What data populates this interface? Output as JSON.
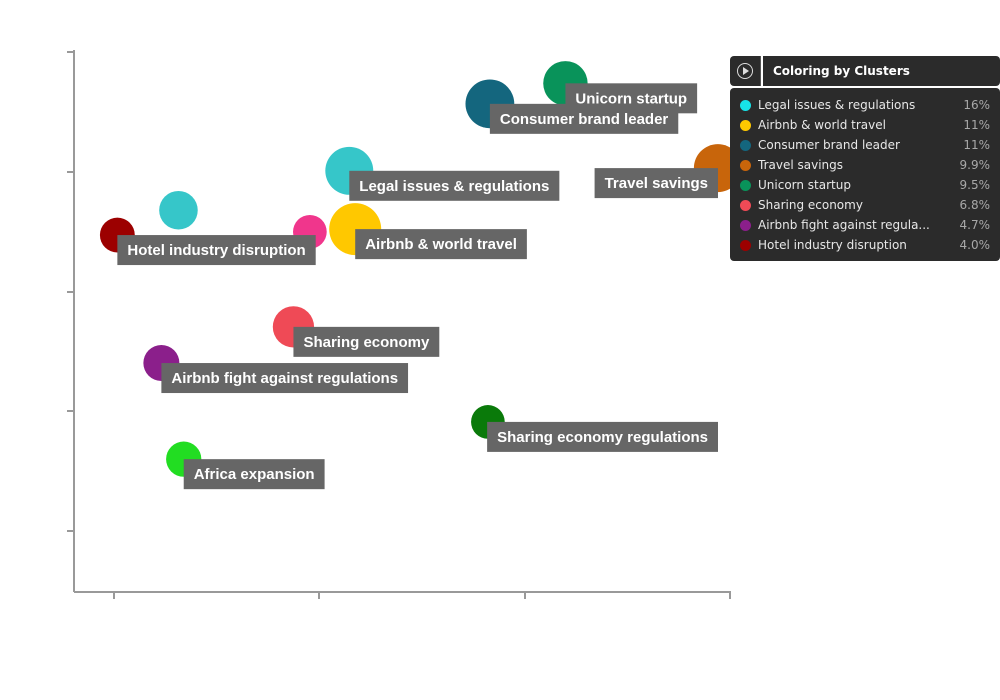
{
  "chart_data": {
    "type": "scatter",
    "title": "",
    "xlabel": "",
    "ylabel": "",
    "xlim": [
      0,
      1
    ],
    "ylim": [
      0,
      1
    ],
    "grid": false,
    "legend_position": "top-right",
    "points": [
      {
        "label": "Unicorn startup",
        "cluster": "Unicorn startup",
        "x": 0.748,
        "y": 0.942,
        "size": 0.73
      },
      {
        "label": "Consumer brand leader",
        "cluster": "Consumer brand leader",
        "x": 0.633,
        "y": 0.904,
        "size": 0.88
      },
      {
        "label": "Legal issues & regulations",
        "cluster": "Legal issues & regulations",
        "x": 0.419,
        "y": 0.78,
        "size": 0.85
      },
      {
        "label": "Travel savings",
        "cluster": "Travel savings",
        "x": 0.98,
        "y": 0.785,
        "size": 0.85
      },
      {
        "label": "Hotel industry disruption",
        "cluster": "Hotel industry disruption",
        "x": 0.066,
        "y": 0.661,
        "size": 0.45
      },
      {
        "label": "",
        "cluster": "Legal issues & regulations",
        "x": 0.159,
        "y": 0.707,
        "size": 0.55
      },
      {
        "label": "",
        "cluster": "Airbnb fight against regulations",
        "x": 0.359,
        "y": 0.667,
        "size": 0.42
      },
      {
        "label": "Airbnb & world travel",
        "cluster": "Airbnb & world travel",
        "x": 0.428,
        "y": 0.672,
        "size": 1.0
      },
      {
        "label": "Sharing economy",
        "cluster": "Sharing economy",
        "x": 0.334,
        "y": 0.491,
        "size": 0.63
      },
      {
        "label": "Airbnb fight against regulations",
        "cluster": "Airbnb fight against regulations",
        "x": 0.133,
        "y": 0.424,
        "size": 0.48
      },
      {
        "label": "Sharing economy regulations",
        "cluster": "Sharing economy regulations",
        "x": 0.63,
        "y": 0.315,
        "size": 0.42
      },
      {
        "label": "Africa expansion",
        "cluster": "Africa expansion",
        "x": 0.167,
        "y": 0.246,
        "size": 0.46
      }
    ]
  },
  "colors": {
    "Legal issues & regulations": "#36c6c9",
    "Airbnb & world travel": "#ffc800",
    "Consumer brand leader": "#14667e",
    "Travel savings": "#c8650b",
    "Unicorn startup": "#09935a",
    "Sharing economy": "#ef4a56",
    "Airbnb fight against regulations": "#8b1f8b",
    "Hotel industry disruption": "#9c0000",
    "Sharing economy regulations": "#0a7a0a",
    "Africa expansion": "#22dd22",
    "pink": "#f0368c",
    "label_bg": "#666666"
  },
  "legend": {
    "title": "Coloring by Clusters",
    "play_icon": "play-circle-icon",
    "items": [
      {
        "name": "Legal issues & regulations",
        "pct": "16%",
        "color": "#17e3e8"
      },
      {
        "name": "Airbnb & world travel",
        "pct": "11%",
        "color": "#ffc800"
      },
      {
        "name": "Consumer brand leader",
        "pct": "11%",
        "color": "#14667e"
      },
      {
        "name": "Travel savings",
        "pct": "9.9%",
        "color": "#c8650b"
      },
      {
        "name": "Unicorn startup",
        "pct": "9.5%",
        "color": "#09935a"
      },
      {
        "name": "Sharing economy",
        "pct": "6.8%",
        "color": "#ef4a56"
      },
      {
        "name": "Airbnb fight against regula...",
        "pct": "4.7%",
        "color": "#8b1f8b"
      },
      {
        "name": "Hotel industry disruption",
        "pct": "4.0%",
        "color": "#9c0000"
      }
    ]
  }
}
